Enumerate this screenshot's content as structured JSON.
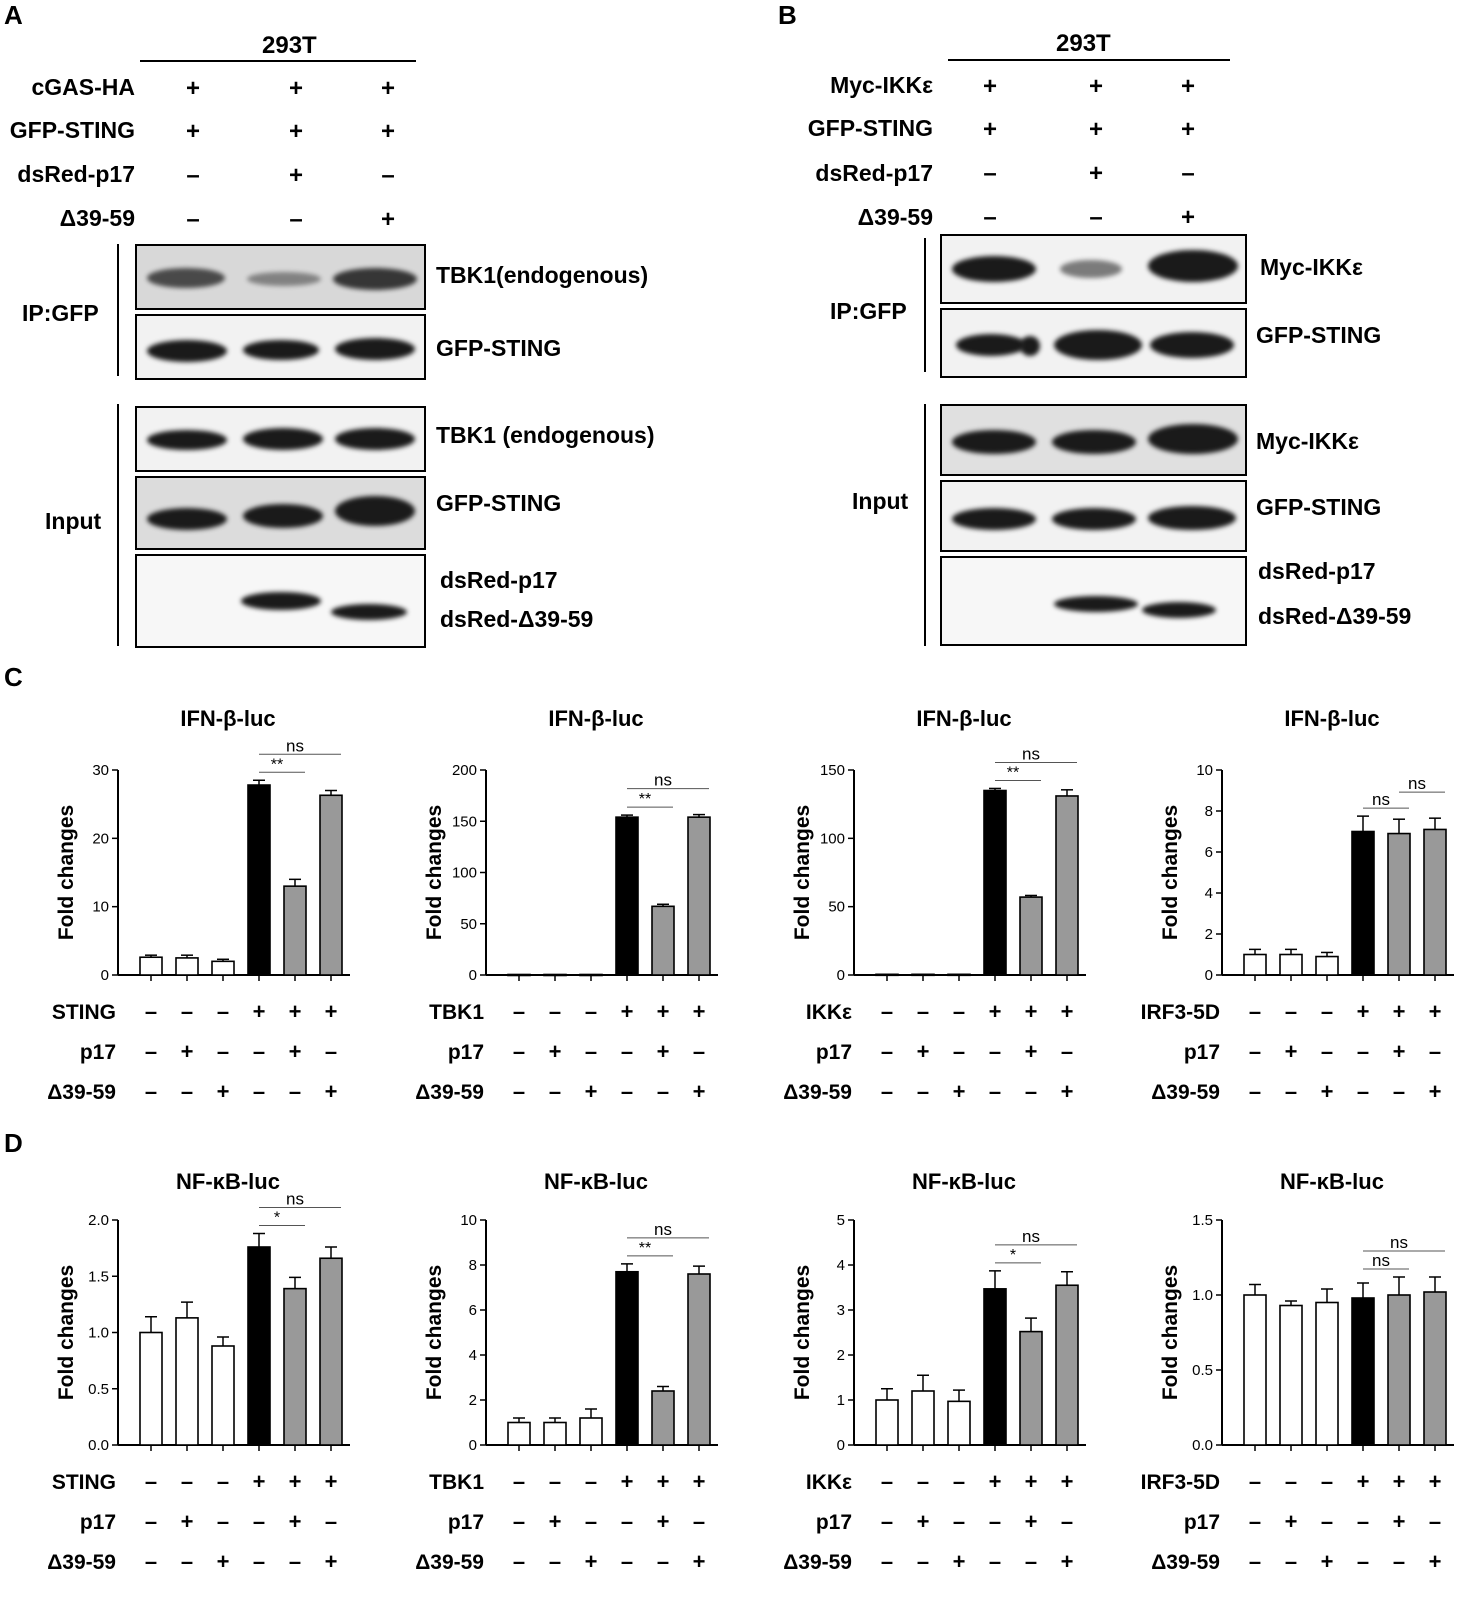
{
  "panels": {
    "A": "A",
    "B": "B",
    "C": "C",
    "D": "D"
  },
  "A": {
    "cell_line": "293T",
    "rows": [
      {
        "label": "cGAS-HA",
        "signs": [
          "+",
          "+",
          "+"
        ]
      },
      {
        "label": "GFP-STING",
        "signs": [
          "+",
          "+",
          "+"
        ]
      },
      {
        "label": "dsRed-p17",
        "signs": [
          "–",
          "+",
          "–"
        ]
      },
      {
        "label": "Δ39-59",
        "signs": [
          "–",
          "–",
          "+"
        ]
      }
    ],
    "ip_label": "IP:GFP",
    "input_label": "Input",
    "blot_labels": [
      "TBK1(endogenous)",
      "GFP-STING",
      "TBK1 (endogenous)",
      "GFP-STING",
      "dsRed-p17",
      "dsRed-Δ39-59"
    ]
  },
  "B": {
    "cell_line": "293T",
    "rows": [
      {
        "label": "Myc-IKKε",
        "signs": [
          "+",
          "+",
          "+"
        ]
      },
      {
        "label": "GFP-STING",
        "signs": [
          "+",
          "+",
          "+"
        ]
      },
      {
        "label": "dsRed-p17",
        "signs": [
          "–",
          "+",
          "–"
        ]
      },
      {
        "label": "Δ39-59",
        "signs": [
          "–",
          "–",
          "+"
        ]
      }
    ],
    "ip_label": "IP:GFP",
    "input_label": "Input",
    "blot_labels": [
      "Myc-IKKε",
      "GFP-STING",
      "Myc-IKKε",
      "GFP-STING",
      "dsRed-p17",
      "dsRed-Δ39-59"
    ]
  },
  "chart_data": [
    {
      "type": "bar",
      "panel": "C",
      "title": "IFN-β-luc",
      "ylabel": "Fold changes",
      "ylim": [
        0,
        30
      ],
      "yticks": [
        0,
        10,
        20,
        30
      ],
      "values": [
        2.6,
        2.5,
        2.0,
        27.8,
        13.0,
        26.3
      ],
      "errors": [
        0.3,
        0.4,
        0.3,
        0.7,
        1.0,
        0.7
      ],
      "row_labels": [
        "STING",
        "p17",
        "Δ39-59"
      ],
      "signs": [
        [
          "–",
          "–",
          "–",
          "+",
          "+",
          "+"
        ],
        [
          "–",
          "+",
          "–",
          "–",
          "+",
          "–"
        ],
        [
          "–",
          "–",
          "+",
          "–",
          "–",
          "+"
        ]
      ],
      "sig": [
        {
          "from": 3,
          "to": 4,
          "label": "**"
        },
        {
          "from": 3,
          "to": 5,
          "label": "ns"
        }
      ]
    },
    {
      "type": "bar",
      "panel": "C",
      "title": "IFN-β-luc",
      "ylabel": "Fold changes",
      "ylim": [
        0,
        200
      ],
      "yticks": [
        0,
        50,
        100,
        150,
        200
      ],
      "values": [
        0.5,
        0.5,
        0.5,
        154,
        67,
        154
      ],
      "errors": [
        0,
        0,
        0,
        2,
        2,
        2.5
      ],
      "row_labels": [
        "TBK1",
        "p17",
        "Δ39-59"
      ],
      "signs": [
        [
          "–",
          "–",
          "–",
          "+",
          "+",
          "+"
        ],
        [
          "–",
          "+",
          "–",
          "–",
          "+",
          "–"
        ],
        [
          "–",
          "–",
          "+",
          "–",
          "–",
          "+"
        ]
      ],
      "sig": [
        {
          "from": 3,
          "to": 4,
          "label": "**"
        },
        {
          "from": 3,
          "to": 5,
          "label": "ns"
        }
      ]
    },
    {
      "type": "bar",
      "panel": "C",
      "title": "IFN-β-luc",
      "ylabel": "Fold changes",
      "ylim": [
        0,
        150
      ],
      "yticks": [
        0,
        50,
        100,
        150
      ],
      "values": [
        0.5,
        0.5,
        0.5,
        135,
        57,
        131
      ],
      "errors": [
        0,
        0,
        0,
        1.5,
        1.2,
        4.5
      ],
      "row_labels": [
        "IKKε",
        "p17",
        "Δ39-59"
      ],
      "signs": [
        [
          "–",
          "–",
          "–",
          "+",
          "+",
          "+"
        ],
        [
          "–",
          "+",
          "–",
          "–",
          "+",
          "–"
        ],
        [
          "–",
          "–",
          "+",
          "–",
          "–",
          "+"
        ]
      ],
      "sig": [
        {
          "from": 3,
          "to": 4,
          "label": "**"
        },
        {
          "from": 3,
          "to": 5,
          "label": "ns"
        }
      ]
    },
    {
      "type": "bar",
      "panel": "C",
      "title": "IFN-β-luc",
      "ylabel": "Fold changes",
      "ylim": [
        0,
        10
      ],
      "yticks": [
        0,
        2,
        4,
        6,
        8,
        10
      ],
      "values": [
        1.0,
        1.0,
        0.9,
        7.0,
        6.9,
        7.1
      ],
      "errors": [
        0.25,
        0.25,
        0.2,
        0.75,
        0.7,
        0.55
      ],
      "row_labels": [
        "IRF3-5D",
        "p17",
        "Δ39-59"
      ],
      "signs": [
        [
          "–",
          "–",
          "–",
          "+",
          "+",
          "+"
        ],
        [
          "–",
          "+",
          "–",
          "–",
          "+",
          "–"
        ],
        [
          "–",
          "–",
          "+",
          "–",
          "–",
          "+"
        ]
      ],
      "sig": [
        {
          "from": 3,
          "to": 4,
          "label": "ns"
        },
        {
          "from": 4,
          "to": 5,
          "label": "ns"
        }
      ]
    },
    {
      "type": "bar",
      "panel": "D",
      "title": "NF-κB-luc",
      "ylabel": "Fold changes",
      "ylim": [
        0,
        2.0
      ],
      "yticks": [
        "0.0",
        "0.5",
        "1.0",
        "1.5",
        "2.0"
      ],
      "values": [
        1.0,
        1.13,
        0.88,
        1.76,
        1.39,
        1.66
      ],
      "errors": [
        0.14,
        0.14,
        0.08,
        0.12,
        0.1,
        0.1
      ],
      "row_labels": [
        "STING",
        "p17",
        "Δ39-59"
      ],
      "signs": [
        [
          "–",
          "–",
          "–",
          "+",
          "+",
          "+"
        ],
        [
          "–",
          "+",
          "–",
          "–",
          "+",
          "–"
        ],
        [
          "–",
          "–",
          "+",
          "–",
          "–",
          "+"
        ]
      ],
      "sig": [
        {
          "from": 3,
          "to": 4,
          "label": "*"
        },
        {
          "from": 3,
          "to": 5,
          "label": "ns"
        }
      ]
    },
    {
      "type": "bar",
      "panel": "D",
      "title": "NF-κB-luc",
      "ylabel": "Fold changes",
      "ylim": [
        0,
        10
      ],
      "yticks": [
        0,
        2,
        4,
        6,
        8,
        10
      ],
      "values": [
        1.0,
        1.0,
        1.2,
        7.7,
        2.4,
        7.6
      ],
      "errors": [
        0.2,
        0.2,
        0.4,
        0.35,
        0.2,
        0.35
      ],
      "row_labels": [
        "TBK1",
        "p17",
        "Δ39-59"
      ],
      "signs": [
        [
          "–",
          "–",
          "–",
          "+",
          "+",
          "+"
        ],
        [
          "–",
          "+",
          "–",
          "–",
          "+",
          "–"
        ],
        [
          "–",
          "–",
          "+",
          "–",
          "–",
          "+"
        ]
      ],
      "sig": [
        {
          "from": 3,
          "to": 4,
          "label": "**"
        },
        {
          "from": 3,
          "to": 5,
          "label": "ns"
        }
      ]
    },
    {
      "type": "bar",
      "panel": "D",
      "title": "NF-κB-luc",
      "ylabel": "Fold changes",
      "ylim": [
        0,
        5
      ],
      "yticks": [
        0,
        1,
        2,
        3,
        4,
        5
      ],
      "values": [
        1.0,
        1.2,
        0.97,
        3.47,
        2.52,
        3.55
      ],
      "errors": [
        0.25,
        0.35,
        0.25,
        0.4,
        0.3,
        0.3
      ],
      "row_labels": [
        "IKKε",
        "p17",
        "Δ39-59"
      ],
      "signs": [
        [
          "–",
          "–",
          "–",
          "+",
          "+",
          "+"
        ],
        [
          "–",
          "+",
          "–",
          "–",
          "+",
          "–"
        ],
        [
          "–",
          "–",
          "+",
          "–",
          "–",
          "+"
        ]
      ],
      "sig": [
        {
          "from": 3,
          "to": 4,
          "label": "*"
        },
        {
          "from": 3,
          "to": 5,
          "label": "ns"
        }
      ]
    },
    {
      "type": "bar",
      "panel": "D",
      "title": "NF-κB-luc",
      "ylabel": "Fold changes",
      "ylim": [
        0,
        1.5
      ],
      "yticks": [
        "0.0",
        "0.5",
        "1.0",
        "1.5"
      ],
      "values": [
        1.0,
        0.93,
        0.95,
        0.98,
        1.0,
        1.02
      ],
      "errors": [
        0.07,
        0.03,
        0.09,
        0.1,
        0.12,
        0.1
      ],
      "row_labels": [
        "IRF3-5D",
        "p17",
        "Δ39-59"
      ],
      "signs": [
        [
          "–",
          "–",
          "–",
          "+",
          "+",
          "+"
        ],
        [
          "–",
          "+",
          "–",
          "–",
          "+",
          "–"
        ],
        [
          "–",
          "–",
          "+",
          "–",
          "–",
          "+"
        ]
      ],
      "sig": [
        {
          "from": 3,
          "to": 4,
          "label": "ns"
        },
        {
          "from": 3,
          "to": 5,
          "label": "ns"
        }
      ]
    }
  ]
}
